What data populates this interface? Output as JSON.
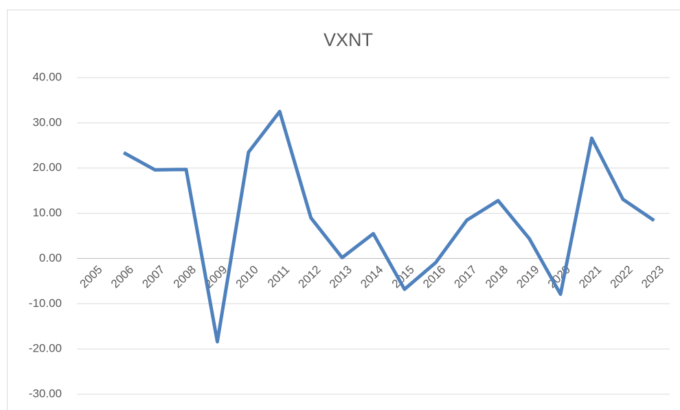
{
  "chart_data": {
    "type": "line",
    "title": "VXNT",
    "categories": [
      "2005",
      "2006",
      "2007",
      "2008",
      "2009",
      "2010",
      "2011",
      "2012",
      "2013",
      "2014",
      "2015",
      "2016",
      "2017",
      "2018",
      "2019",
      "2020",
      "2021",
      "2022",
      "2023"
    ],
    "series": [
      {
        "name": "VXNT",
        "color": "#4f81bd",
        "values": [
          null,
          23.4,
          19.6,
          19.7,
          -18.4,
          23.5,
          32.5,
          9.0,
          0.2,
          5.5,
          -6.8,
          -0.9,
          8.5,
          12.8,
          4.4,
          -7.9,
          26.6,
          13.1,
          8.4
        ]
      }
    ],
    "ylim": [
      -30,
      40
    ],
    "yticks": [
      {
        "value": -30,
        "label": "-30.00"
      },
      {
        "value": -20,
        "label": "-20.00"
      },
      {
        "value": -10,
        "label": "-10.00"
      },
      {
        "value": 0,
        "label": "0.00"
      },
      {
        "value": 10,
        "label": "10.00"
      },
      {
        "value": 20,
        "label": "20.00"
      },
      {
        "value": 30,
        "label": "30.00"
      },
      {
        "value": 40,
        "label": "40.00"
      }
    ],
    "grid": true
  }
}
